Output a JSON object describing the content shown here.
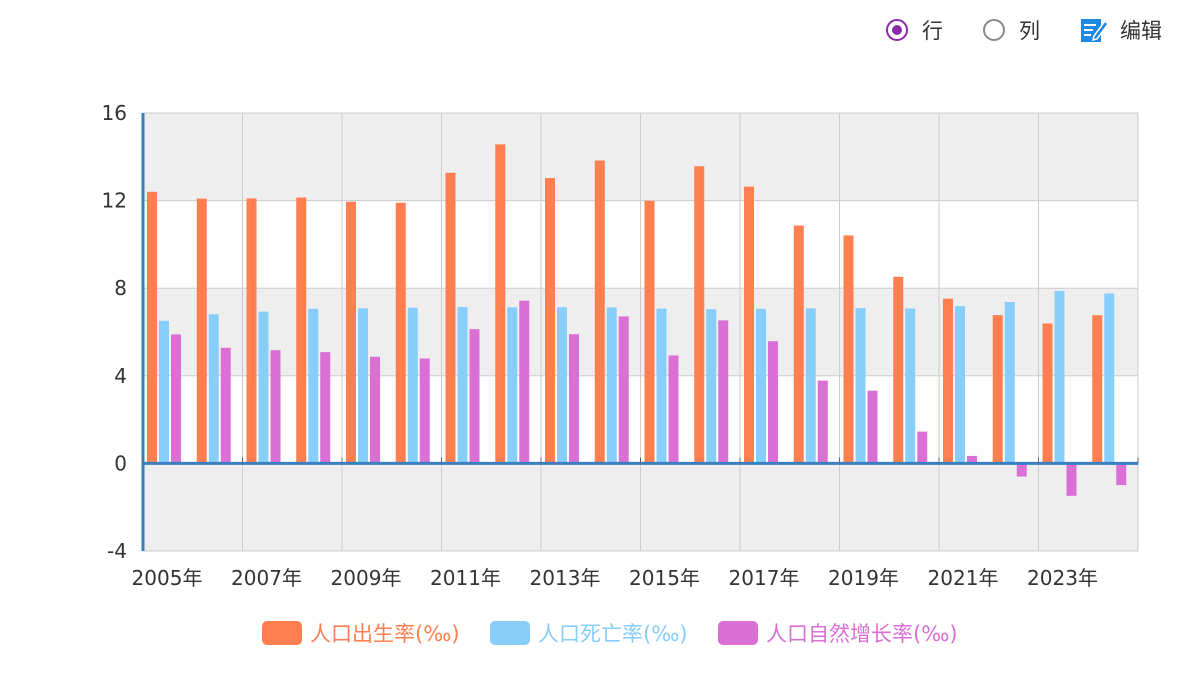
{
  "toolbar": {
    "options": [
      {
        "label": "行",
        "selected": true
      },
      {
        "label": "列",
        "selected": false
      }
    ],
    "edit_label": "编辑",
    "edit_icon": "edit-icon",
    "accent_color": "#8a2aa8",
    "edit_icon_color": "#1e88e5"
  },
  "chart_data": {
    "type": "bar",
    "title": "",
    "xlabel": "",
    "ylabel": "",
    "ylim": [
      -4,
      16
    ],
    "yticks": [
      -4,
      0,
      4,
      8,
      12,
      16
    ],
    "grid": true,
    "legend_position": "bottom",
    "categories": [
      "2005年",
      "2006年",
      "2007年",
      "2008年",
      "2009年",
      "2010年",
      "2011年",
      "2012年",
      "2013年",
      "2014年",
      "2015年",
      "2016年",
      "2017年",
      "2018年",
      "2019年",
      "2020年",
      "2021年",
      "2022年",
      "2023年",
      "2024年"
    ],
    "tick_labels": [
      "2005年",
      "2007年",
      "2009年",
      "2011年",
      "2013年",
      "2015年",
      "2017年",
      "2019年",
      "2021年",
      "2023年"
    ],
    "series": [
      {
        "name": "人口出生率(‰)",
        "color": "#ff7f50",
        "values": [
          12.4,
          12.09,
          12.1,
          12.14,
          11.95,
          11.9,
          13.27,
          14.57,
          13.03,
          13.83,
          11.99,
          13.57,
          12.64,
          10.86,
          10.41,
          8.52,
          7.52,
          6.77,
          6.39,
          6.77
        ]
      },
      {
        "name": "人口死亡率(‰)",
        "color": "#87cefa",
        "values": [
          6.51,
          6.81,
          6.93,
          7.06,
          7.08,
          7.11,
          7.14,
          7.13,
          7.13,
          7.12,
          7.07,
          7.04,
          7.06,
          7.08,
          7.09,
          7.07,
          7.18,
          7.37,
          7.87,
          7.76
        ]
      },
      {
        "name": "人口自然增长率(‰)",
        "color": "#da70d6",
        "values": [
          5.89,
          5.28,
          5.17,
          5.08,
          4.87,
          4.79,
          6.13,
          7.43,
          5.9,
          6.71,
          4.93,
          6.53,
          5.58,
          3.78,
          3.32,
          1.45,
          0.34,
          -0.6,
          -1.48,
          -0.99
        ]
      }
    ]
  }
}
